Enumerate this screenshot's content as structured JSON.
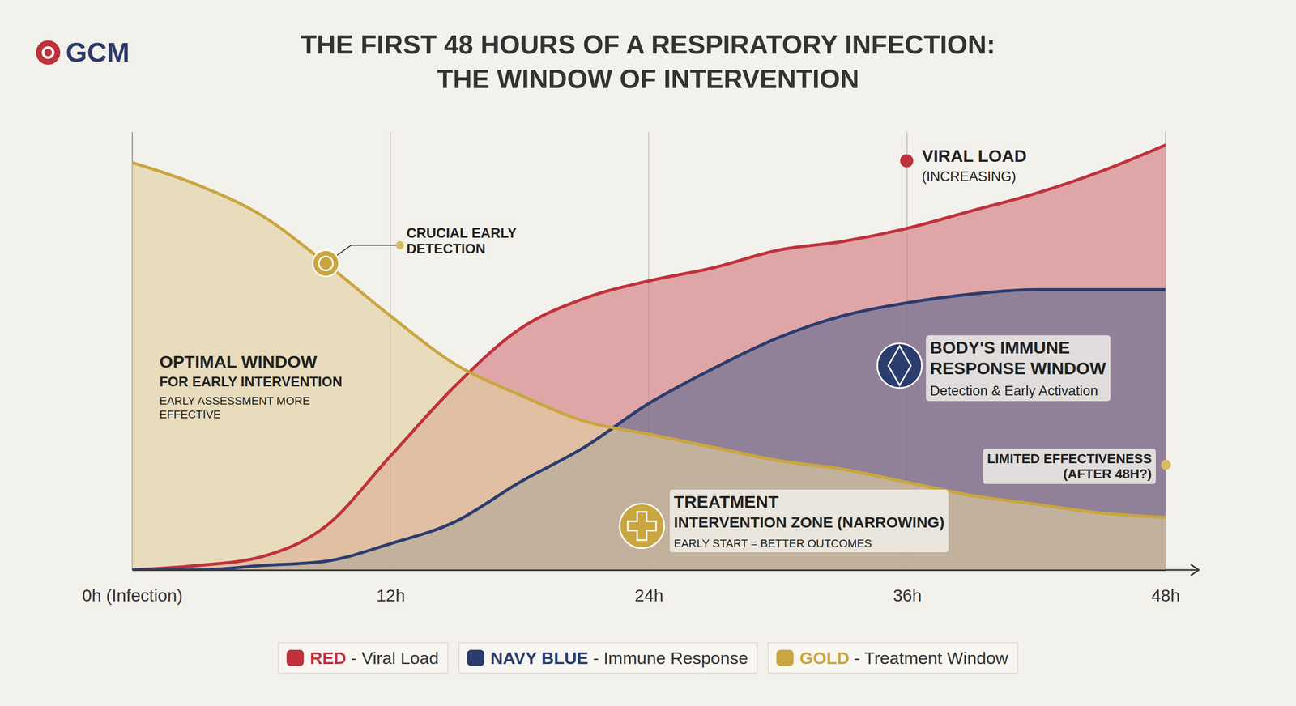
{
  "chart_data": {
    "type": "area",
    "logo": "GCM",
    "title": "THE FIRST 48 HOURS OF A RESPIRATORY INFECTION: THE WINDOW OF INTERVENTION",
    "x": [
      0,
      3,
      6,
      9,
      12,
      15,
      18,
      21,
      24,
      27,
      30,
      33,
      36,
      39,
      42,
      45,
      48
    ],
    "xlim": [
      0,
      48
    ],
    "xticks": [
      {
        "value": 0,
        "label": "0h (Infection)"
      },
      {
        "value": 12,
        "label": "12h"
      },
      {
        "value": 24,
        "label": "24h"
      },
      {
        "value": 36,
        "label": "36h"
      },
      {
        "value": 48,
        "label": "48h"
      }
    ],
    "ylim": [
      0,
      100
    ],
    "tick_labels": "x",
    "grid": true,
    "legend": "bottom",
    "series": [
      {
        "name": "RED - Viral Load",
        "color": "#c0313b",
        "values": [
          0,
          1,
          3,
          10,
          26,
          42,
          55,
          62,
          66,
          69,
          73,
          75,
          78,
          82,
          86,
          91,
          97
        ]
      },
      {
        "name": "NAVY BLUE - Immune Response",
        "color": "#2b3c6e",
        "values": [
          0,
          0,
          1,
          2,
          6,
          11,
          20,
          28,
          38,
          46,
          53,
          58,
          61,
          63,
          64,
          64,
          64
        ]
      },
      {
        "name": "GOLD - Treatment Window",
        "color": "#c9a640",
        "values": [
          93,
          88,
          81,
          70,
          58,
          47,
          40,
          34,
          31,
          28,
          25,
          23,
          20,
          17,
          15,
          13,
          12
        ]
      }
    ],
    "annotations": [
      [
        "CRUCIAL EARLY",
        "DETECTION"
      ],
      [
        "OPTIMAL WINDOW",
        "FOR EARLY INTERVENTION",
        "EARLY ASSESSMENT MORE",
        "EFFECTIVE"
      ],
      [
        "VIRAL LOAD",
        "(INCREASING)"
      ],
      [
        "BODY'S IMMUNE",
        "RESPONSE WINDOW",
        "Detection & Early Activation"
      ],
      [
        "LIMITED EFFECTIVENESS",
        "(AFTER 48H?)"
      ],
      [
        "TREATMENT",
        "INTERVENTION ZONE (NARROWING)",
        "EARLY START = BETTER OUTCOMES"
      ]
    ]
  }
}
